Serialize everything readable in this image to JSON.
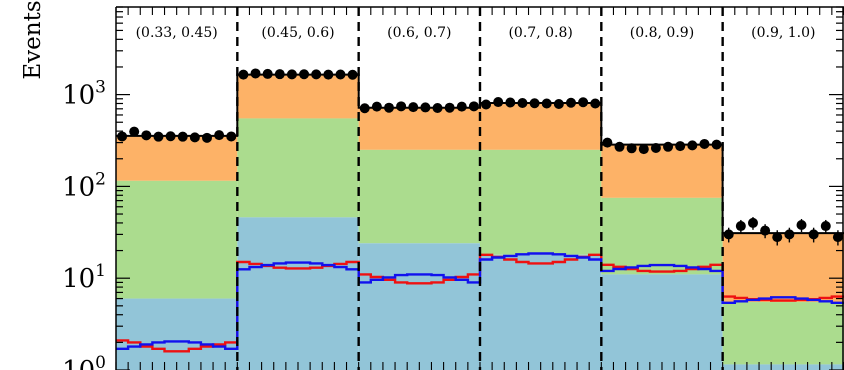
{
  "chart_data": {
    "type": "histogram",
    "ylabel": "Events",
    "yscale": "log",
    "ylim": [
      1,
      9000
    ],
    "y_ticks": [
      {
        "value": 1,
        "label_base": "10",
        "label_exp": "0"
      },
      {
        "value": 10,
        "label_base": "10",
        "label_exp": "1"
      },
      {
        "value": 100,
        "label_base": "10",
        "label_exp": "2"
      },
      {
        "value": 1000,
        "label_base": "10",
        "label_exp": "3"
      }
    ],
    "bins_per_region": 10,
    "regions": [
      {
        "label": "(0.33, 0.45)",
        "stack": {
          "blue": 6,
          "green": 115,
          "orange": 355
        },
        "data": [
          350,
          395,
          360,
          348,
          352,
          348,
          342,
          338,
          362,
          350
        ],
        "red": [
          2.1,
          2.0,
          1.8,
          1.7,
          1.6,
          1.6,
          1.7,
          1.8,
          1.9,
          2.0
        ],
        "blueline": [
          1.7,
          1.8,
          1.9,
          2.0,
          2.05,
          2.05,
          2.0,
          1.9,
          1.8,
          1.7
        ]
      },
      {
        "label": "(0.45, 0.6)",
        "stack": {
          "blue": 46,
          "green": 550,
          "orange": 1650
        },
        "data": [
          1650,
          1700,
          1680,
          1670,
          1660,
          1665,
          1660,
          1650,
          1655,
          1645
        ],
        "red": [
          15,
          14.3,
          13.6,
          13.0,
          12.8,
          12.8,
          13.0,
          13.6,
          14.3,
          15
        ],
        "blueline": [
          12.5,
          13.2,
          13.9,
          14.5,
          14.8,
          14.8,
          14.5,
          13.9,
          13.2,
          12.5
        ]
      },
      {
        "label": "(0.6, 0.7)",
        "stack": {
          "blue": 24,
          "green": 250,
          "orange": 720
        },
        "data": [
          710,
          740,
          720,
          745,
          730,
          725,
          715,
          720,
          740,
          745
        ],
        "red": [
          11,
          10.3,
          9.6,
          9.0,
          8.8,
          8.8,
          9.0,
          9.6,
          10.3,
          11
        ],
        "blueline": [
          9.0,
          9.6,
          10.2,
          10.8,
          11.0,
          11.0,
          10.8,
          10.2,
          9.6,
          9.0
        ]
      },
      {
        "label": "(0.7, 0.8)",
        "stack": {
          "blue": 18,
          "green": 250,
          "orange": 810
        },
        "data": [
          780,
          830,
          820,
          810,
          805,
          800,
          790,
          815,
          825,
          800
        ],
        "red": [
          18,
          17,
          16,
          15,
          14.5,
          14.5,
          15,
          16,
          17,
          18
        ],
        "blueline": [
          16,
          16.8,
          17.5,
          18.2,
          18.6,
          18.6,
          18.2,
          17.5,
          16.8,
          16
        ]
      },
      {
        "label": "(0.8, 0.9)",
        "stack": {
          "blue": 11,
          "green": 75,
          "orange": 285
        },
        "data": [
          300,
          270,
          260,
          255,
          262,
          270,
          275,
          280,
          290,
          285
        ],
        "red": [
          14,
          13.3,
          12.6,
          12.0,
          11.8,
          11.8,
          12.0,
          12.6,
          13.3,
          14
        ],
        "blueline": [
          12.0,
          12.6,
          13.1,
          13.6,
          13.9,
          13.9,
          13.6,
          13.1,
          12.6,
          12.0
        ]
      },
      {
        "label": "(0.9, 1.0)",
        "stack": {
          "blue": 1.15,
          "green": 5.5,
          "orange": 31
        },
        "data": [
          30,
          37,
          40,
          33,
          28,
          30,
          38,
          30,
          37,
          28
        ],
        "red": [
          6.3,
          6.1,
          5.9,
          5.8,
          5.7,
          5.7,
          5.8,
          5.9,
          6.1,
          6.3
        ],
        "blueline": [
          5.4,
          5.6,
          5.8,
          6.0,
          6.2,
          6.2,
          6.0,
          5.8,
          5.6,
          5.4
        ]
      }
    ],
    "colors": {
      "blue_fill": "#92c5d8",
      "green_fill": "#abdc8e",
      "orange_fill": "#fdb267",
      "red_line": "#ee1111",
      "blue_line": "#1111ee",
      "data_marker": "#000000",
      "divider": "#000000"
    }
  }
}
